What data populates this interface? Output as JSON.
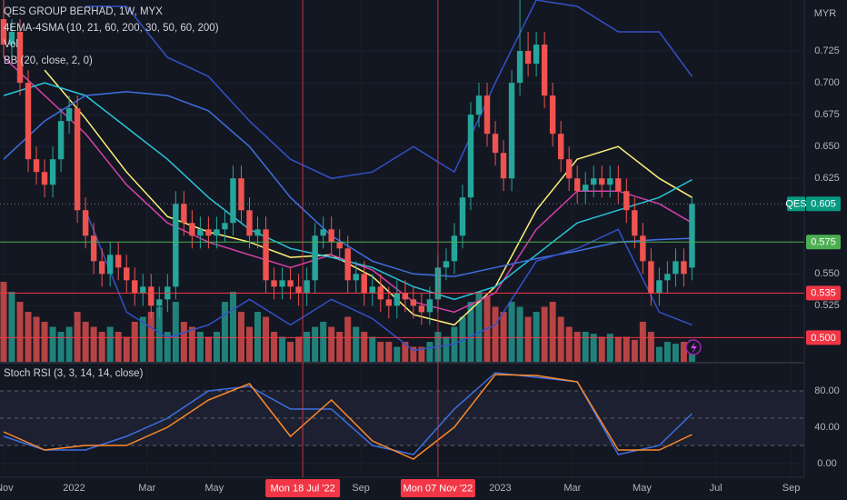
{
  "chart_data": [
    {
      "type": "candlestick",
      "title": "QES GROUP BERHAD, 1W, MYX",
      "indicators": [
        "4EMA-4SMA (10, 21, 60, 200, 30, 50, 60, 200)",
        "Vol",
        "BB (20, close, 2, 0)"
      ],
      "currency": "MYR",
      "xlim": [
        -0.44,
        97.7
      ],
      "ylim": [
        0.481,
        0.765
      ],
      "yticks": [
        {
          "value": 0.7,
          "label": "0.700"
        },
        0.725,
        0.675,
        {
          "value": 0.65,
          "label": "0.650"
        },
        0.625,
        {
          "value": 0.55,
          "label": "0.550"
        },
        0.525
      ],
      "up_color": "#26a69a",
      "down_color": "#ef5350",
      "x": [
        0,
        1,
        2,
        3,
        4,
        5,
        6,
        7,
        8,
        9,
        10,
        11,
        12,
        13,
        14,
        15,
        16,
        17,
        18,
        19,
        20,
        21,
        22,
        23,
        24,
        25,
        26,
        27,
        28,
        29,
        30,
        31,
        32,
        33,
        34,
        35,
        36,
        37,
        38,
        39,
        40,
        41,
        42,
        43,
        44,
        45,
        46,
        47,
        48,
        49,
        50,
        51,
        52,
        53,
        54,
        55,
        56,
        57,
        58,
        59,
        60,
        61,
        62,
        63,
        64,
        65,
        66,
        67,
        68,
        69,
        70,
        71,
        72,
        73,
        74,
        75,
        76,
        77,
        78,
        79,
        80,
        81,
        82,
        83,
        84
      ],
      "open": [
        0.75,
        0.73,
        0.74,
        0.7,
        0.64,
        0.63,
        0.62,
        0.64,
        0.67,
        0.68,
        0.6,
        0.58,
        0.56,
        0.55,
        0.565,
        0.555,
        0.545,
        0.535,
        0.54,
        0.525,
        0.53,
        0.54,
        0.605,
        0.59,
        0.58,
        0.585,
        0.58,
        0.585,
        0.59,
        0.625,
        0.6,
        0.58,
        0.585,
        0.545,
        0.54,
        0.545,
        0.54,
        0.535,
        0.545,
        0.58,
        0.585,
        0.575,
        0.57,
        0.545,
        0.55,
        0.535,
        0.54,
        0.53,
        0.525,
        0.535,
        0.53,
        0.525,
        0.52,
        0.53,
        0.555,
        0.56,
        0.58,
        0.61,
        0.675,
        0.69,
        0.66,
        0.645,
        0.625,
        0.7,
        0.725,
        0.715,
        0.73,
        0.69,
        0.66,
        0.64,
        0.625,
        0.615,
        0.62,
        0.625,
        0.62,
        0.625,
        0.615,
        0.6,
        0.58,
        0.56,
        0.535,
        0.545,
        0.55,
        0.56,
        0.555
      ],
      "high": [
        0.765,
        0.75,
        0.75,
        0.71,
        0.65,
        0.64,
        0.65,
        0.68,
        0.69,
        0.69,
        0.61,
        0.59,
        0.57,
        0.575,
        0.575,
        0.565,
        0.555,
        0.55,
        0.55,
        0.54,
        0.55,
        0.615,
        0.615,
        0.6,
        0.595,
        0.595,
        0.595,
        0.6,
        0.635,
        0.635,
        0.61,
        0.595,
        0.595,
        0.555,
        0.555,
        0.555,
        0.55,
        0.555,
        0.59,
        0.595,
        0.595,
        0.585,
        0.58,
        0.56,
        0.56,
        0.55,
        0.55,
        0.54,
        0.545,
        0.545,
        0.54,
        0.535,
        0.54,
        0.565,
        0.57,
        0.59,
        0.62,
        0.685,
        0.7,
        0.7,
        0.67,
        0.655,
        0.71,
        0.765,
        0.74,
        0.74,
        0.74,
        0.7,
        0.67,
        0.65,
        0.635,
        0.63,
        0.635,
        0.635,
        0.635,
        0.635,
        0.625,
        0.61,
        0.59,
        0.57,
        0.555,
        0.56,
        0.57,
        0.57,
        0.61
      ],
      "low": [
        0.72,
        0.72,
        0.69,
        0.63,
        0.62,
        0.61,
        0.61,
        0.63,
        0.66,
        0.59,
        0.57,
        0.55,
        0.54,
        0.54,
        0.545,
        0.535,
        0.525,
        0.525,
        0.515,
        0.515,
        0.52,
        0.53,
        0.58,
        0.57,
        0.57,
        0.57,
        0.57,
        0.575,
        0.58,
        0.59,
        0.57,
        0.57,
        0.535,
        0.53,
        0.53,
        0.53,
        0.525,
        0.525,
        0.535,
        0.57,
        0.565,
        0.56,
        0.535,
        0.535,
        0.525,
        0.525,
        0.52,
        0.515,
        0.515,
        0.52,
        0.515,
        0.51,
        0.51,
        0.52,
        0.545,
        0.55,
        0.57,
        0.6,
        0.665,
        0.65,
        0.635,
        0.615,
        0.615,
        0.69,
        0.705,
        0.705,
        0.68,
        0.65,
        0.63,
        0.615,
        0.605,
        0.605,
        0.61,
        0.61,
        0.61,
        0.605,
        0.59,
        0.57,
        0.55,
        0.525,
        0.525,
        0.535,
        0.54,
        0.54,
        0.545
      ],
      "close": [
        0.73,
        0.74,
        0.7,
        0.64,
        0.63,
        0.62,
        0.64,
        0.67,
        0.68,
        0.6,
        0.58,
        0.56,
        0.55,
        0.565,
        0.555,
        0.545,
        0.535,
        0.54,
        0.525,
        0.53,
        0.54,
        0.605,
        0.59,
        0.58,
        0.585,
        0.58,
        0.585,
        0.59,
        0.625,
        0.6,
        0.58,
        0.585,
        0.545,
        0.54,
        0.545,
        0.54,
        0.535,
        0.545,
        0.58,
        0.585,
        0.575,
        0.57,
        0.545,
        0.55,
        0.535,
        0.54,
        0.53,
        0.525,
        0.535,
        0.53,
        0.525,
        0.52,
        0.53,
        0.555,
        0.56,
        0.58,
        0.61,
        0.675,
        0.69,
        0.66,
        0.645,
        0.625,
        0.7,
        0.725,
        0.715,
        0.73,
        0.69,
        0.66,
        0.64,
        0.625,
        0.615,
        0.62,
        0.625,
        0.62,
        0.625,
        0.615,
        0.6,
        0.58,
        0.56,
        0.535,
        0.545,
        0.55,
        0.56,
        0.55,
        0.605
      ],
      "volume": [
        80,
        70,
        60,
        50,
        45,
        40,
        35,
        30,
        35,
        50,
        40,
        35,
        30,
        35,
        30,
        25,
        40,
        45,
        50,
        55,
        30,
        60,
        40,
        35,
        30,
        25,
        30,
        60,
        70,
        50,
        35,
        50,
        45,
        30,
        25,
        20,
        25,
        30,
        35,
        40,
        35,
        30,
        45,
        35,
        30,
        25,
        20,
        20,
        15,
        20,
        15,
        15,
        20,
        30,
        25,
        35,
        45,
        60,
        70,
        65,
        55,
        50,
        60,
        55,
        45,
        50,
        55,
        60,
        45,
        35,
        30,
        30,
        28,
        25,
        28,
        25,
        25,
        22,
        40,
        30,
        15,
        20,
        18,
        20,
        22
      ],
      "series": [
        {
          "color": "#fff176",
          "x": [
            0,
            5,
            10,
            15,
            20,
            25,
            30,
            35,
            40,
            45,
            50,
            55,
            60,
            65,
            70,
            75,
            80,
            84
          ],
          "values": [
            null,
            0.71,
            0.672,
            0.63,
            0.595,
            0.583,
            0.575,
            0.563,
            0.565,
            0.548,
            0.518,
            0.51,
            0.54,
            0.6,
            0.64,
            0.65,
            0.625,
            0.61
          ]
        },
        {
          "color": "#d63fa8",
          "x": [
            0,
            5,
            10,
            15,
            20,
            25,
            30,
            35,
            40,
            45,
            50,
            55,
            60,
            65,
            70,
            75,
            80,
            84
          ],
          "values": [
            0.72,
            0.69,
            0.66,
            0.62,
            0.59,
            0.575,
            0.565,
            0.555,
            0.565,
            0.553,
            0.528,
            0.52,
            0.535,
            0.585,
            0.615,
            0.615,
            0.605,
            0.59
          ]
        },
        {
          "color": "#26c6da",
          "x": [
            0,
            5,
            10,
            15,
            20,
            25,
            30,
            35,
            40,
            45,
            50,
            55,
            60,
            65,
            70,
            75,
            80,
            84
          ],
          "values": [
            0.69,
            0.7,
            0.69,
            0.665,
            0.64,
            0.61,
            0.585,
            0.57,
            0.563,
            0.555,
            0.54,
            0.53,
            0.54,
            0.565,
            0.59,
            0.6,
            0.61,
            0.624
          ]
        },
        {
          "color": "#3f6fe0",
          "x": [
            0,
            5,
            10,
            15,
            20,
            25,
            30,
            35,
            40,
            45,
            50,
            55,
            60,
            65,
            70,
            75,
            80,
            84
          ],
          "values": [
            0.64,
            0.67,
            0.69,
            0.693,
            0.69,
            0.678,
            0.65,
            0.61,
            0.58,
            0.56,
            0.55,
            0.548,
            0.555,
            0.562,
            0.568,
            0.575,
            0.577,
            0.578
          ]
        },
        {
          "color": "#3550c8",
          "x": [
            0,
            5,
            10,
            15,
            20,
            25,
            30,
            35,
            40,
            45,
            50,
            55,
            60,
            65,
            70,
            75,
            80,
            84
          ],
          "values": [
            null,
            null,
            0.76,
            0.76,
            0.72,
            0.705,
            0.67,
            0.64,
            0.625,
            0.63,
            0.65,
            0.63,
            0.7,
            0.765,
            0.76,
            0.74,
            0.74,
            0.705
          ]
        },
        {
          "color": "#3550c8",
          "x": [
            0,
            5,
            10,
            15,
            20,
            25,
            30,
            35,
            40,
            45,
            50,
            55,
            60,
            65,
            70,
            75,
            80,
            84
          ],
          "values": [
            null,
            null,
            0.6,
            0.52,
            0.5,
            0.51,
            0.53,
            0.51,
            0.53,
            0.515,
            0.49,
            0.495,
            0.51,
            0.56,
            0.57,
            0.585,
            0.52,
            0.51
          ]
        }
      ],
      "price_lines": [
        {
          "value": 0.605,
          "label": "0.605",
          "tag": "QES",
          "color": "#089981",
          "dashed": true
        },
        {
          "value": 0.575,
          "label": "0.575",
          "color": "#4caf50"
        },
        {
          "value": 0.535,
          "label": "0.535",
          "color": "#f23645"
        },
        {
          "value": 0.5,
          "label": "0.500",
          "color": "#f23645"
        }
      ]
    },
    {
      "type": "line",
      "title": "Stoch RSI (3, 3, 14, 14, close)",
      "xlim": [
        -0.44,
        97.7
      ],
      "ylim": [
        -15,
        110
      ],
      "yticks": [
        {
          "value": 80,
          "label": "80.00"
        },
        {
          "value": 40,
          "label": "40.00"
        },
        {
          "value": 0,
          "label": "0.00"
        }
      ],
      "bands": [
        80,
        50,
        20
      ],
      "band_fill": "#1c2030",
      "xticks": [
        {
          "value": 0.1,
          "label": "Nov"
        },
        {
          "value": 8.6,
          "label": "2022"
        },
        {
          "value": 17.5,
          "label": "Mar"
        },
        {
          "value": 25.7,
          "label": "May"
        },
        {
          "value": 43.6,
          "label": "Sep"
        },
        {
          "value": 60.6,
          "label": "2023"
        },
        {
          "value": 69.4,
          "label": "Mar"
        },
        {
          "value": 77.9,
          "label": "May"
        },
        {
          "value": 86.9,
          "label": "Jul"
        },
        {
          "value": 96.1,
          "label": "Sep"
        }
      ],
      "markers": [
        {
          "value": 36.5,
          "label": "Mon 18 Jul '22"
        },
        {
          "value": 53.0,
          "label": "Mon 07 Nov '22"
        }
      ],
      "marker_color": "#f23645",
      "series": [
        {
          "color": "#3f6fe0",
          "x": [
            0,
            5,
            10,
            15,
            20,
            25,
            30,
            35,
            40,
            45,
            50,
            55,
            60,
            65,
            70,
            75,
            80,
            84
          ],
          "values": [
            30,
            15,
            15,
            30,
            50,
            80,
            85,
            60,
            60,
            20,
            10,
            60,
            100,
            95,
            90,
            10,
            20,
            55
          ]
        },
        {
          "color": "#ff8a2a",
          "x": [
            0,
            5,
            10,
            15,
            20,
            25,
            30,
            35,
            40,
            45,
            50,
            55,
            60,
            65,
            70,
            75,
            80,
            84
          ],
          "values": [
            35,
            15,
            20,
            20,
            40,
            70,
            88,
            30,
            70,
            25,
            5,
            40,
            98,
            97,
            90,
            15,
            15,
            32
          ]
        }
      ]
    }
  ]
}
